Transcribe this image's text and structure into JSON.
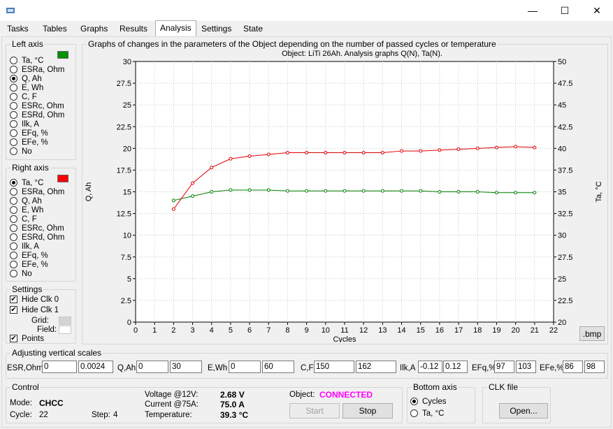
{
  "window": {
    "minimize_label": "—",
    "maximize_label": "☐",
    "close_label": "✕"
  },
  "tabs": [
    {
      "label": "Tasks"
    },
    {
      "label": "Tables"
    },
    {
      "label": "Graphs"
    },
    {
      "label": "Results"
    },
    {
      "label": "Analysis",
      "active": true
    },
    {
      "label": "Settings"
    },
    {
      "label": "State"
    }
  ],
  "left_axis": {
    "title": "Left axis",
    "color": "#009000",
    "options": [
      "Ta, °C",
      "ESRa, Ohm",
      "Q, Ah",
      "E, Wh",
      "C, F",
      "ESRc, Ohm",
      "ESRd, Ohm",
      "Ilk, A",
      "EFq, %",
      "EFe, %",
      "No"
    ],
    "selected": "Q, Ah"
  },
  "right_axis": {
    "title": "Right axis",
    "color": "#ff0000",
    "options": [
      "Ta, °C",
      "ESRa, Ohm",
      "Q, Ah",
      "E, Wh",
      "C, F",
      "ESRc, Ohm",
      "ESRd, Ohm",
      "Ilk, A",
      "EFq, %",
      "EFe, %",
      "No"
    ],
    "selected": "Ta, °C"
  },
  "settings": {
    "title": "Settings",
    "hide_clk0": "Hide Clk 0",
    "hide_clk1": "Hide Clk 1",
    "grid": "Grid:",
    "field": "Field:",
    "points": "Points"
  },
  "graph_group": {
    "title": "Graphs of changes in the parameters of the Object depending on the number of passed cycles or temperature"
  },
  "chart_data": {
    "type": "line",
    "title": "Object: LiTi 26Ah. Analysis graphs Q(N), Ta(N).",
    "xlabel": "Cycles",
    "ylabel_left": "Q, Ah",
    "ylabel_right": "Ta, °C",
    "xlim": [
      0,
      22
    ],
    "ylim_left": [
      0,
      30
    ],
    "ylim_right": [
      20,
      50
    ],
    "x_ticks": [
      "0",
      "1",
      "2",
      "3",
      "4",
      "5",
      "6",
      "7",
      "8",
      "9",
      "10",
      "11",
      "12",
      "13",
      "14",
      "15",
      "16",
      "17",
      "18",
      "19",
      "20",
      "21",
      "22"
    ],
    "y_left_ticks": [
      "0",
      "2.5",
      "5",
      "7.5",
      "10",
      "12.5",
      "15",
      "17.5",
      "20",
      "22.5",
      "25",
      "27.5",
      "30"
    ],
    "y_right_ticks": [
      "20",
      "22.5",
      "25",
      "27.5",
      "30",
      "32.5",
      "35",
      "37.5",
      "40",
      "42.5",
      "45",
      "47.5",
      "50"
    ],
    "grid": true,
    "series": [
      {
        "axis": "left",
        "color": "#008000",
        "x": [
          2,
          3,
          4,
          5,
          6,
          7,
          8,
          9,
          10,
          11,
          12,
          13,
          14,
          15,
          16,
          17,
          18,
          19,
          20,
          21
        ],
        "values": [
          14.0,
          14.5,
          15.0,
          15.2,
          15.2,
          15.2,
          15.1,
          15.1,
          15.1,
          15.1,
          15.1,
          15.1,
          15.1,
          15.1,
          15.0,
          15.0,
          15.0,
          14.9,
          14.9,
          14.9
        ]
      },
      {
        "axis": "right",
        "color": "#e00000",
        "x": [
          2,
          3,
          4,
          5,
          6,
          7,
          8,
          9,
          10,
          11,
          12,
          13,
          14,
          15,
          16,
          17,
          18,
          19,
          20,
          21
        ],
        "values": [
          33.0,
          36.0,
          37.8,
          38.8,
          39.1,
          39.3,
          39.5,
          39.5,
          39.5,
          39.5,
          39.5,
          39.5,
          39.7,
          39.7,
          39.8,
          39.9,
          40.0,
          40.1,
          40.2,
          40.1
        ]
      }
    ]
  },
  "bmp_button": ".bmp",
  "scales": {
    "title": "Adjusting vertical scales",
    "items": [
      {
        "label": "ESR,Ohm",
        "min": "0",
        "max": "0.0024"
      },
      {
        "label": "Q,Ah",
        "min": "0",
        "max": "30"
      },
      {
        "label": "E,Wh",
        "min": "0",
        "max": "60"
      },
      {
        "label": "C,F",
        "min": "150",
        "max": "162"
      },
      {
        "label": "Ilk,A",
        "min": "-0.12",
        "max": "0.12"
      },
      {
        "label": "EFq,%",
        "min": "97",
        "max": "103"
      },
      {
        "label": "EFe,%",
        "min": "86",
        "max": "98"
      }
    ]
  },
  "control": {
    "title": "Control",
    "mode_label": "Mode:",
    "mode_value": "CHCC",
    "cycle_label": "Cycle:",
    "cycle_value": "22",
    "step_label": "Step:",
    "step_value": "4",
    "voltage_label": "Voltage @12V:",
    "voltage_value": "2.68 V",
    "current_label": "Current @75A:",
    "current_value": "75.0 A",
    "temp_label": "Temperature:",
    "temp_value": "39.3 °C",
    "object_label": "Object:",
    "object_value": "CONNECTED",
    "object_color": "#ff00ff",
    "start_label": "Start",
    "stop_label": "Stop"
  },
  "bottom_axis": {
    "title": "Bottom axis",
    "options": [
      "Cycles",
      "Ta, °C"
    ],
    "selected": "Cycles"
  },
  "clk_file": {
    "title": "CLK file",
    "open_label": "Open..."
  }
}
